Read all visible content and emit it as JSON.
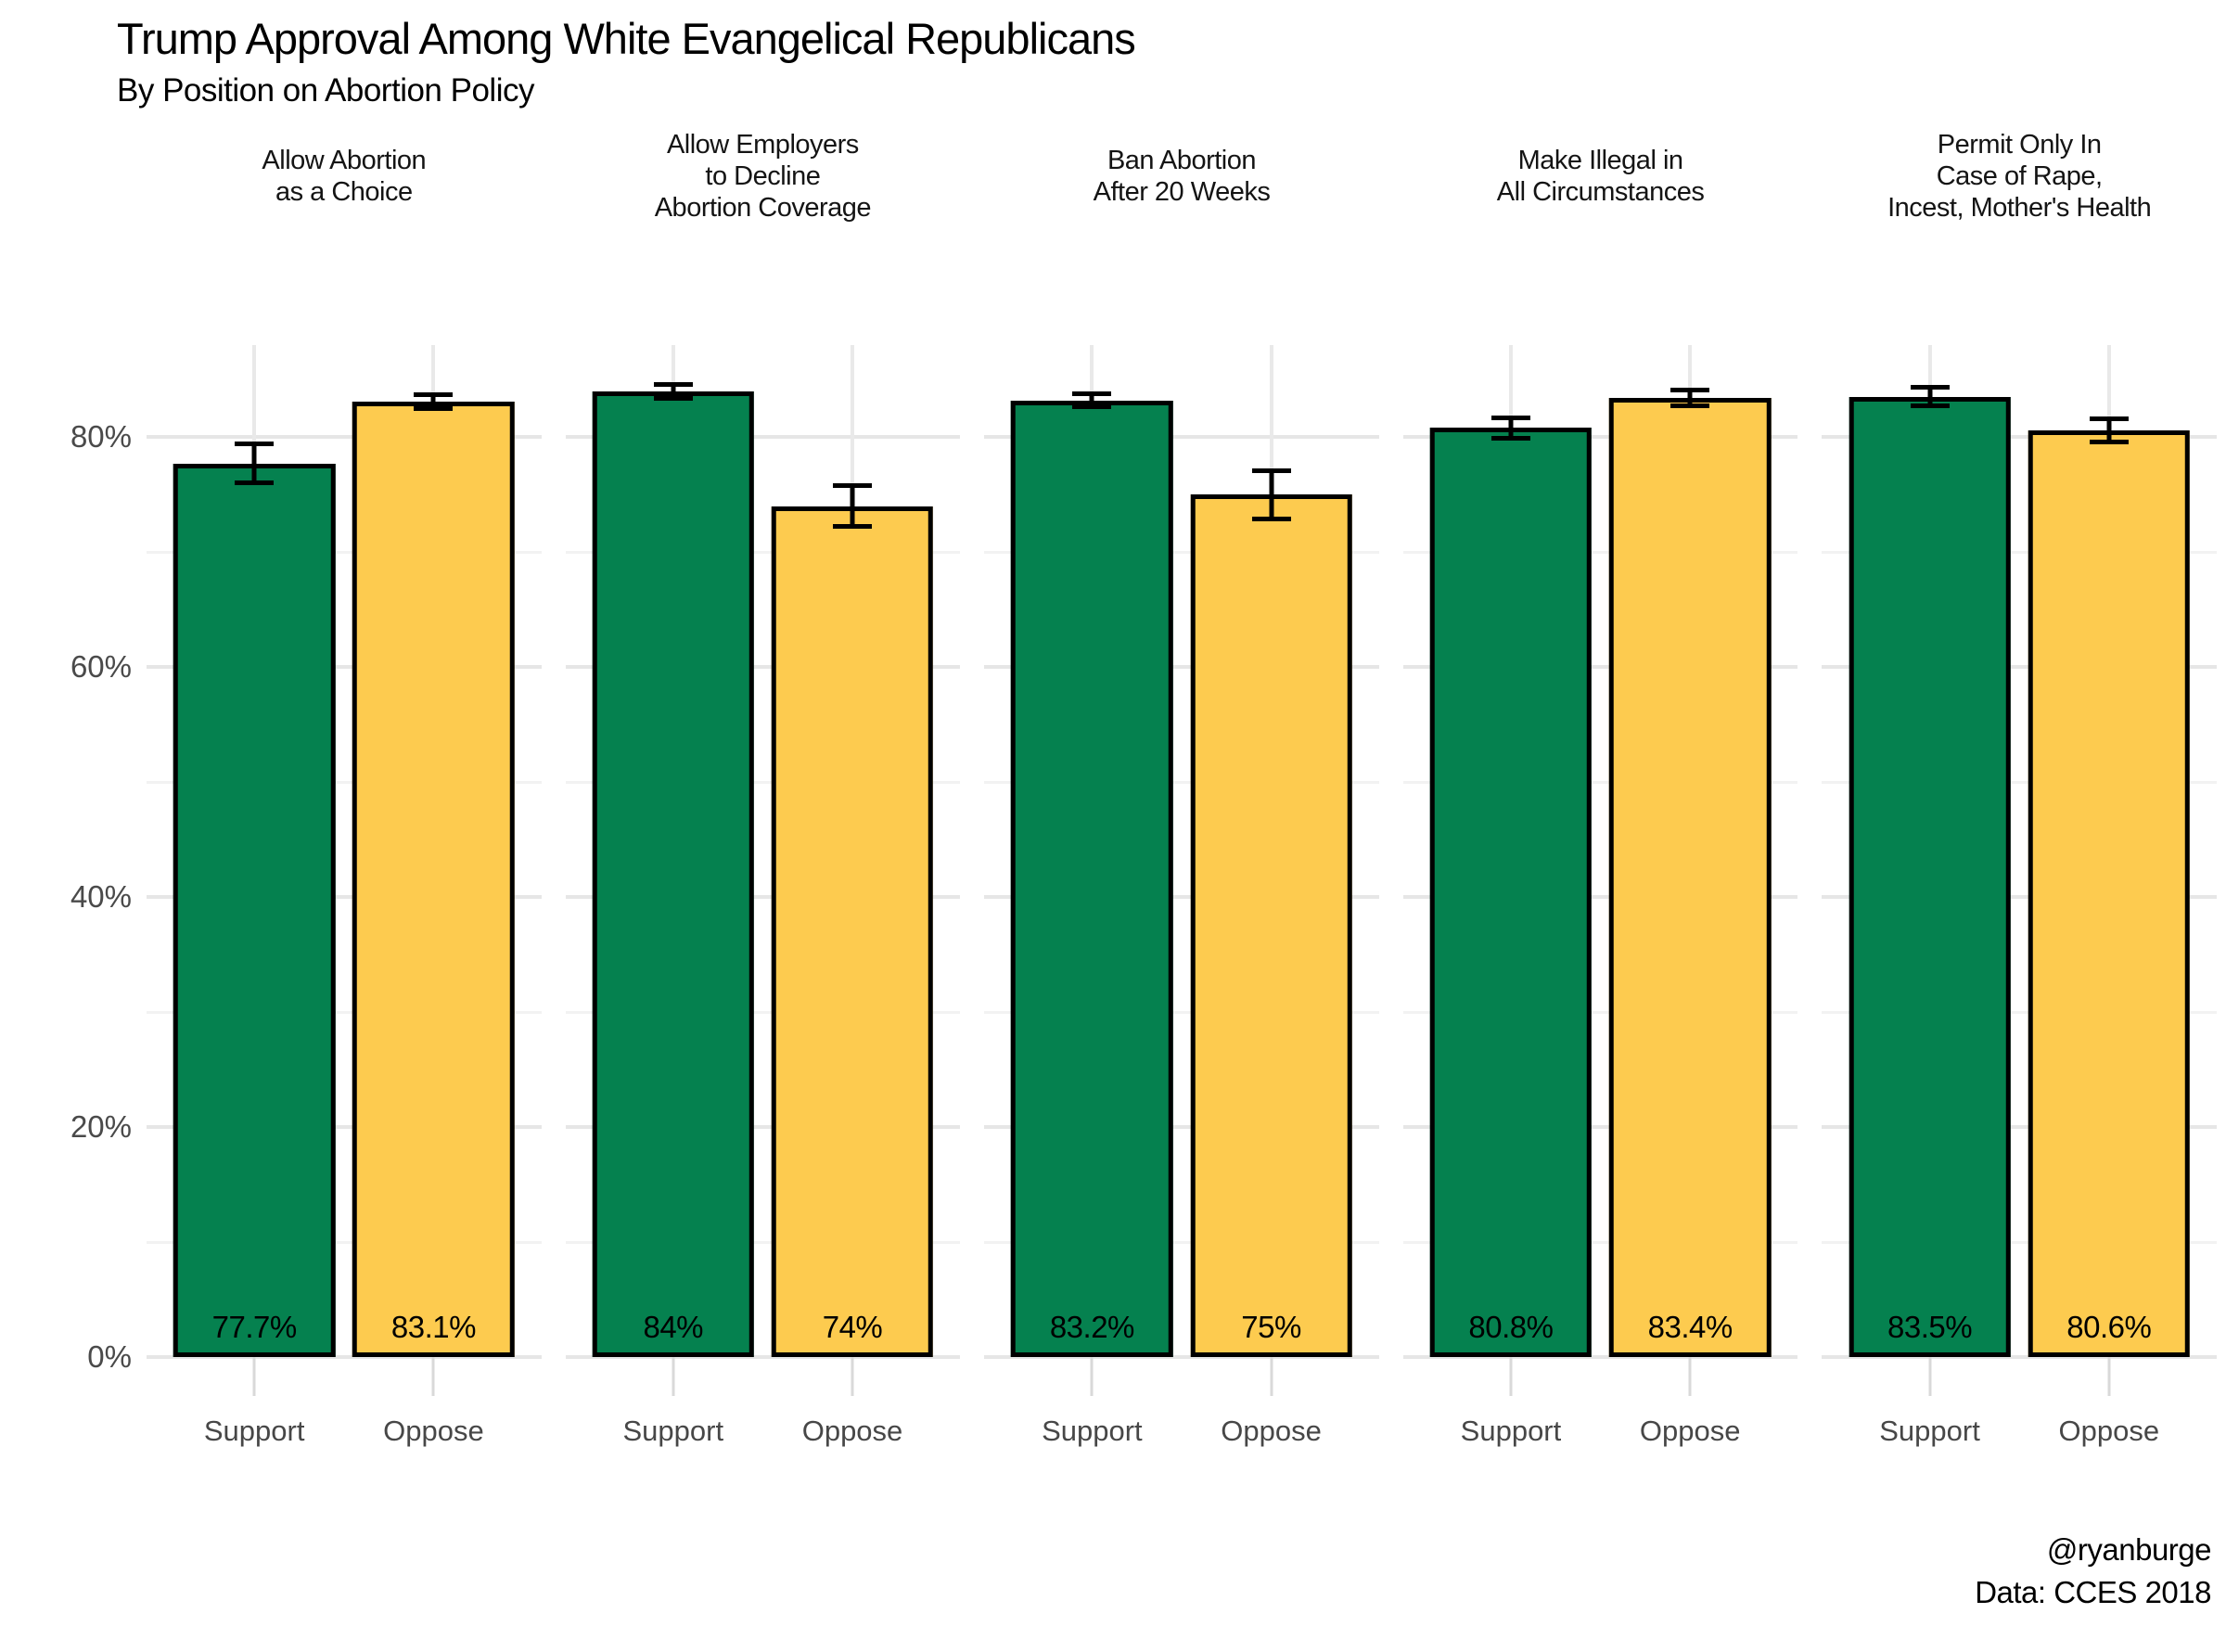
{
  "title": "Trump Approval Among White Evangelical Republicans",
  "subtitle": "By Position on Abortion Policy",
  "caption": {
    "line1": "@ryanburge",
    "line2": "Data: CCES 2018"
  },
  "colors": {
    "support_bar": "#05814F",
    "oppose_bar": "#FDCB4F",
    "bar_outline": "#000000",
    "grid_major": "#e6e6e6",
    "grid_minor": "#f2f2f2",
    "axis_tick": "#d9d9d9",
    "axis_text": "#4a4a4a"
  },
  "y_axis": {
    "ticks": [
      {
        "value": 0,
        "label": "0%"
      },
      {
        "value": 20,
        "label": "20%"
      },
      {
        "value": 40,
        "label": "40%"
      },
      {
        "value": 60,
        "label": "60%"
      },
      {
        "value": 80,
        "label": "80%"
      }
    ],
    "minor_ticks": [
      10,
      30,
      50,
      70
    ],
    "display_max": 88
  },
  "chart_data": {
    "type": "bar",
    "title": "Trump Approval Among White Evangelical Republicans",
    "subtitle": "By Position on Abortion Policy",
    "xlabel": "",
    "ylabel": "",
    "ylim": [
      0,
      88
    ],
    "grid": "on",
    "legend": "none",
    "categories": [
      "Support",
      "Oppose"
    ],
    "facets": [
      {
        "title": "Allow Abortion\nas a Choice",
        "bars": [
          {
            "group": "Support",
            "value": 77.7,
            "label": "77.7%",
            "error": 1.9,
            "color_key": "support_bar"
          },
          {
            "group": "Oppose",
            "value": 83.1,
            "label": "83.1%",
            "error": 0.8,
            "color_key": "oppose_bar"
          }
        ]
      },
      {
        "title": "Allow Employers\nto Decline\nAbortion Coverage",
        "bars": [
          {
            "group": "Support",
            "value": 84,
            "label": "84%",
            "error": 0.8,
            "color_key": "support_bar"
          },
          {
            "group": "Oppose",
            "value": 74,
            "label": "74%",
            "error": 2.0,
            "color_key": "oppose_bar"
          }
        ]
      },
      {
        "title": "Ban Abortion\nAfter 20 Weeks",
        "bars": [
          {
            "group": "Support",
            "value": 83.2,
            "label": "83.2%",
            "error": 0.8,
            "color_key": "support_bar"
          },
          {
            "group": "Oppose",
            "value": 75,
            "label": "75%",
            "error": 2.3,
            "color_key": "oppose_bar"
          }
        ]
      },
      {
        "title": "Make Illegal in\nAll Circumstances",
        "bars": [
          {
            "group": "Support",
            "value": 80.8,
            "label": "80.8%",
            "error": 1.1,
            "color_key": "support_bar"
          },
          {
            "group": "Oppose",
            "value": 83.4,
            "label": "83.4%",
            "error": 0.9,
            "color_key": "oppose_bar"
          }
        ]
      },
      {
        "title": "Permit Only In\nCase of Rape,\nIncest, Mother's Health",
        "bars": [
          {
            "group": "Support",
            "value": 83.5,
            "label": "83.5%",
            "error": 1.0,
            "color_key": "support_bar"
          },
          {
            "group": "Oppose",
            "value": 80.6,
            "label": "80.6%",
            "error": 1.2,
            "color_key": "oppose_bar"
          }
        ]
      }
    ],
    "bar_center_positions_pct": [
      27.3,
      72.7
    ],
    "bar_width_pct": 41
  }
}
